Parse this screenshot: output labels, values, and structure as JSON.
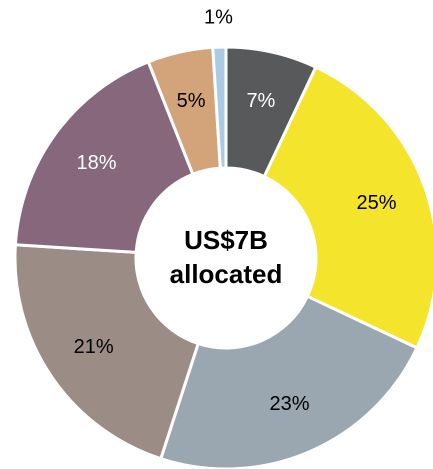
{
  "chart_data": {
    "type": "donut",
    "center_label": [
      "US$7B",
      "allocated"
    ],
    "values": [
      7,
      25,
      23,
      21,
      18,
      5,
      1
    ],
    "value_labels": [
      "7%",
      "25%",
      "23%",
      "21%",
      "18%",
      "5%",
      "1%"
    ],
    "colors": [
      "#58595b",
      "#f4e42c",
      "#9aa6b0",
      "#9b8d86",
      "#87677b",
      "#d3a47a",
      "#abcbe5"
    ]
  }
}
